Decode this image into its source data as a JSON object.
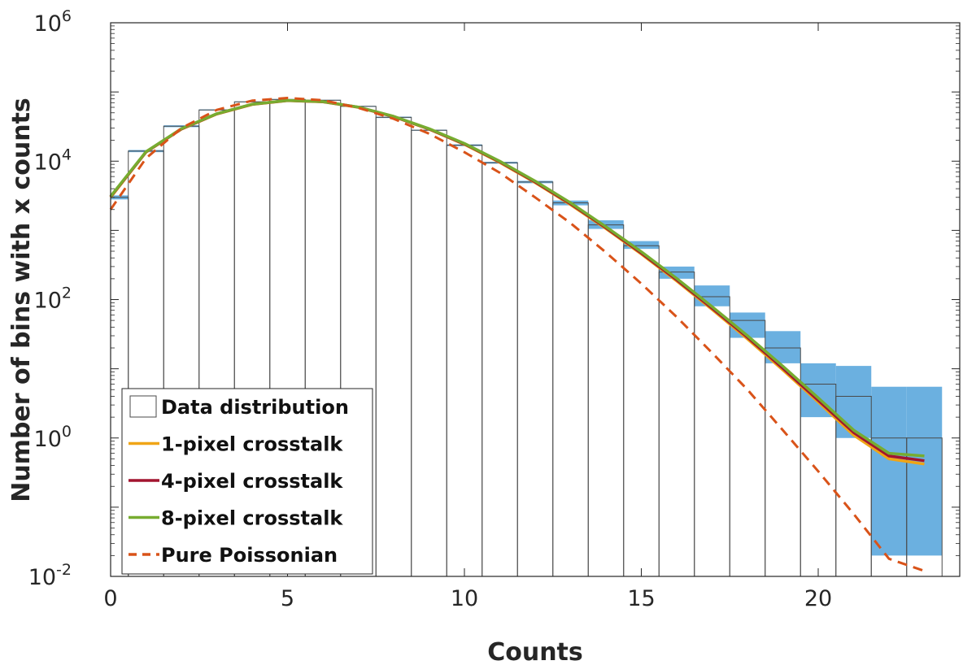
{
  "chart_data": {
    "type": "histogram-with-lines",
    "xlabel": "Counts",
    "ylabel": "Number of bins with x counts",
    "xlim": [
      0,
      24
    ],
    "ylim": [
      0.01,
      1000000
    ],
    "yscale": "log",
    "x_ticks": [
      0,
      5,
      10,
      15,
      20
    ],
    "y_ticks": [
      {
        "value": 0.01,
        "base": "10",
        "exp": "-2"
      },
      {
        "value": 1,
        "base": "10",
        "exp": "0"
      },
      {
        "value": 100,
        "base": "10",
        "exp": "2"
      },
      {
        "value": 10000,
        "base": "10",
        "exp": "4"
      },
      {
        "value": 1000000,
        "base": "10",
        "exp": "6"
      }
    ],
    "histogram": {
      "name": "Data distribution",
      "x": [
        0,
        1,
        2,
        3,
        4,
        5,
        6,
        7,
        8,
        9,
        10,
        11,
        12,
        13,
        14,
        15,
        16,
        17,
        18,
        19,
        20,
        21,
        22,
        23
      ],
      "counts": [
        3000,
        14000,
        32000,
        55000,
        72000,
        78000,
        76000,
        62000,
        43000,
        28000,
        17000,
        9500,
        5000,
        2500,
        1200,
        600,
        250,
        110,
        50,
        20,
        6,
        4,
        1,
        1
      ]
    },
    "uncertainty_band": {
      "color": "#6bb0e0",
      "x": [
        0,
        1,
        2,
        3,
        4,
        5,
        6,
        7,
        8,
        9,
        10,
        11,
        12,
        13,
        14,
        15,
        16,
        17,
        18,
        19,
        20,
        21,
        22,
        23
      ],
      "lower": [
        2800,
        13500,
        31000,
        54000,
        71000,
        77000,
        75000,
        61000,
        42000,
        27500,
        16500,
        9200,
        4800,
        2300,
        1050,
        540,
        200,
        80,
        28,
        12,
        2,
        1,
        0.02,
        0.02
      ],
      "upper": [
        3200,
        14500,
        33000,
        56000,
        73000,
        79000,
        77000,
        63000,
        44000,
        28500,
        17500,
        9800,
        5200,
        2700,
        1400,
        700,
        300,
        160,
        65,
        35,
        12,
        11,
        5.5,
        5.5
      ]
    },
    "series": [
      {
        "name": "1-pixel crosstalk",
        "color": "#f0a516",
        "dash": "solid",
        "x": [
          0,
          1,
          2,
          3,
          4,
          5,
          6,
          7,
          8,
          9,
          10,
          11,
          12,
          13,
          14,
          15,
          16,
          17,
          18,
          19,
          20,
          21,
          22,
          23
        ],
        "y": [
          3000,
          13500,
          29000,
          48000,
          66000,
          75000,
          72000,
          60000,
          44000,
          29000,
          17500,
          9600,
          4900,
          2350,
          1060,
          455,
          186,
          72,
          27,
          9.6,
          3.3,
          1.1,
          0.5,
          0.42
        ]
      },
      {
        "name": "4-pixel crosstalk",
        "color": "#a2142f",
        "dash": "solid",
        "x": [
          0,
          1,
          2,
          3,
          4,
          5,
          6,
          7,
          8,
          9,
          10,
          11,
          12,
          13,
          14,
          15,
          16,
          17,
          18,
          19,
          20,
          21,
          22,
          23
        ],
        "y": [
          3050,
          13600,
          29200,
          48300,
          66300,
          75300,
          72300,
          60300,
          44200,
          29200,
          17700,
          9800,
          5000,
          2420,
          1090,
          470,
          193,
          75,
          28.5,
          10.2,
          3.5,
          1.2,
          0.55,
          0.47
        ]
      },
      {
        "name": "8-pixel crosstalk",
        "color": "#77ac30",
        "dash": "solid",
        "x": [
          0,
          1,
          2,
          3,
          4,
          5,
          6,
          7,
          8,
          9,
          10,
          11,
          12,
          13,
          14,
          15,
          16,
          17,
          18,
          19,
          20,
          21,
          22,
          23
        ],
        "y": [
          3100,
          13700,
          29500,
          48500,
          66500,
          75500,
          72500,
          60500,
          44500,
          29500,
          18000,
          10000,
          5150,
          2500,
          1130,
          490,
          202,
          79,
          30,
          10.9,
          3.8,
          1.3,
          0.6,
          0.55
        ]
      },
      {
        "name": "Pure Poissonian",
        "color": "#d95319",
        "dash": "dashed",
        "x": [
          0,
          1,
          2,
          3,
          4,
          5,
          6,
          7,
          8,
          9,
          10,
          11,
          12,
          13,
          14,
          15,
          16,
          17,
          18,
          19,
          20,
          21,
          22,
          23
        ],
        "y": [
          2000,
          11000,
          30000,
          55000,
          75000,
          82000,
          76000,
          59000,
          41000,
          25000,
          13500,
          6800,
          3000,
          1270,
          480,
          170,
          56,
          17,
          5,
          1.3,
          0.33,
          0.08,
          0.018,
          0.012
        ]
      }
    ],
    "legend": {
      "position": "bottom-left",
      "entries": [
        {
          "label": "Data distribution",
          "kind": "box"
        },
        {
          "label": "1-pixel crosstalk",
          "kind": "line",
          "color": "#f0a516"
        },
        {
          "label": "4-pixel crosstalk",
          "kind": "line",
          "color": "#a2142f"
        },
        {
          "label": "8-pixel crosstalk",
          "kind": "line",
          "color": "#77ac30"
        },
        {
          "label": "Pure Poissonian",
          "kind": "dashed",
          "color": "#d95319"
        }
      ]
    }
  }
}
